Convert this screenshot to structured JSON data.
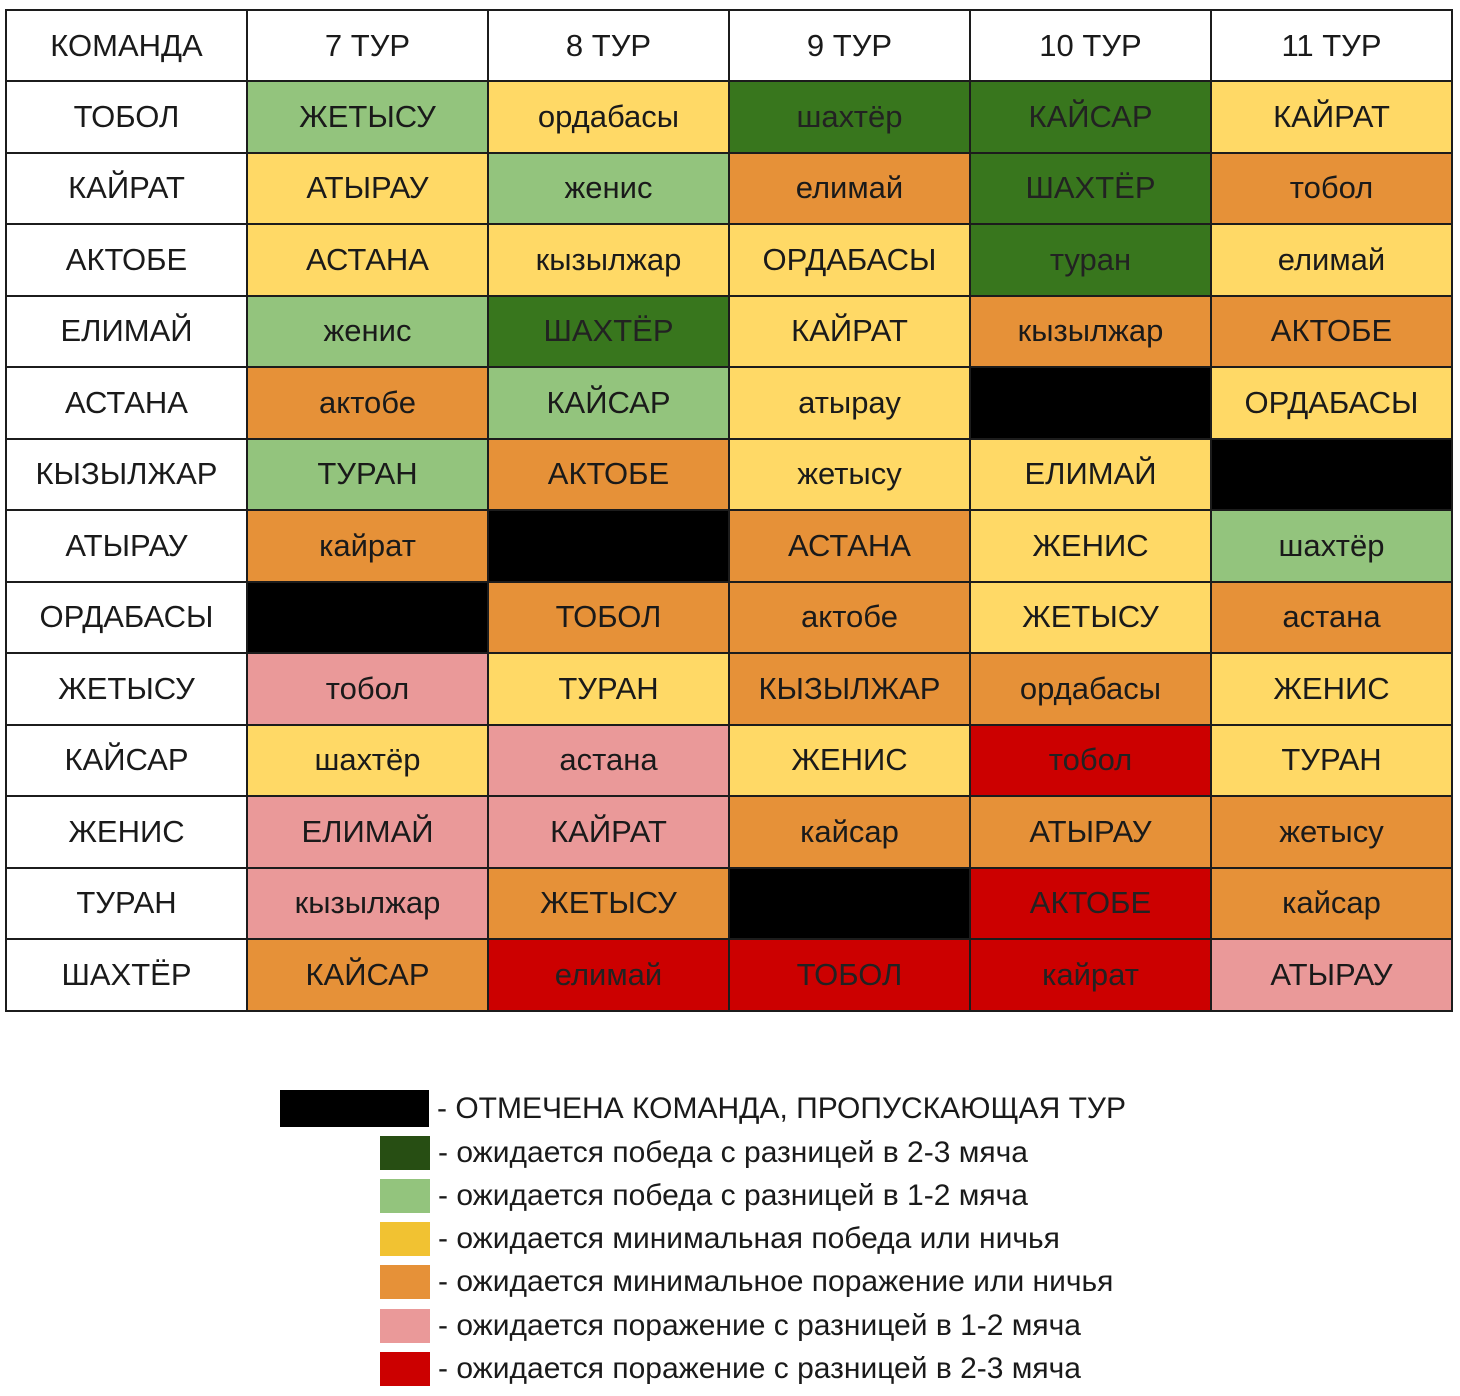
{
  "colors": {
    "bye": "#000000",
    "win_big": "#38761d",
    "win_small": "#93c47d",
    "min_win_draw": "#ffd966",
    "min_loss_draw": "#e69138",
    "loss_small": "#ea9999",
    "loss_big": "#cc0000",
    "legend_win_big": "#274e13",
    "legend_min_win_draw": "#f1c232"
  },
  "header": [
    "КОМАНДА",
    "7 ТУР",
    "8 ТУР",
    "9 ТУР",
    "10 ТУР",
    "11 ТУР"
  ],
  "rows": [
    {
      "team": "ТОБОЛ",
      "cells": [
        {
          "text": "ЖЕТЫСУ",
          "color": "win_small"
        },
        {
          "text": "ордабасы",
          "color": "min_win_draw"
        },
        {
          "text": "шахтёр",
          "color": "win_big"
        },
        {
          "text": "КАЙСАР",
          "color": "win_big"
        },
        {
          "text": "КАЙРАТ",
          "color": "min_win_draw"
        }
      ]
    },
    {
      "team": "КАЙРАТ",
      "cells": [
        {
          "text": "АТЫРАУ",
          "color": "min_win_draw"
        },
        {
          "text": "женис",
          "color": "win_small"
        },
        {
          "text": "елимай",
          "color": "min_loss_draw"
        },
        {
          "text": "ШАХТЁР",
          "color": "win_big"
        },
        {
          "text": "тобол",
          "color": "min_loss_draw"
        }
      ]
    },
    {
      "team": "АКТОБЕ",
      "cells": [
        {
          "text": "АСТАНА",
          "color": "min_win_draw"
        },
        {
          "text": "кызылжар",
          "color": "min_win_draw"
        },
        {
          "text": "ОРДАБАСЫ",
          "color": "min_win_draw"
        },
        {
          "text": "туран",
          "color": "win_big"
        },
        {
          "text": "елимай",
          "color": "min_win_draw"
        }
      ]
    },
    {
      "team": "ЕЛИМАЙ",
      "cells": [
        {
          "text": "женис",
          "color": "win_small"
        },
        {
          "text": "ШАХТЁР",
          "color": "win_big"
        },
        {
          "text": "КАЙРАТ",
          "color": "min_win_draw"
        },
        {
          "text": "кызылжар",
          "color": "min_loss_draw"
        },
        {
          "text": "АКТОБЕ",
          "color": "min_loss_draw"
        }
      ]
    },
    {
      "team": "АСТАНА",
      "cells": [
        {
          "text": "актобе",
          "color": "min_loss_draw"
        },
        {
          "text": "КАЙСАР",
          "color": "win_small"
        },
        {
          "text": "атырау",
          "color": "min_win_draw"
        },
        {
          "text": "",
          "color": "bye"
        },
        {
          "text": "ОРДАБАСЫ",
          "color": "min_win_draw"
        }
      ]
    },
    {
      "team": "КЫЗЫЛЖАР",
      "cells": [
        {
          "text": "ТУРАН",
          "color": "win_small"
        },
        {
          "text": "АКТОБЕ",
          "color": "min_loss_draw"
        },
        {
          "text": "жетысу",
          "color": "min_win_draw"
        },
        {
          "text": "ЕЛИМАЙ",
          "color": "min_win_draw"
        },
        {
          "text": "",
          "color": "bye"
        }
      ]
    },
    {
      "team": "АТЫРАУ",
      "cells": [
        {
          "text": "кайрат",
          "color": "min_loss_draw"
        },
        {
          "text": "",
          "color": "bye"
        },
        {
          "text": "АСТАНА",
          "color": "min_loss_draw"
        },
        {
          "text": "ЖЕНИС",
          "color": "min_win_draw"
        },
        {
          "text": "шахтёр",
          "color": "win_small"
        }
      ]
    },
    {
      "team": "ОРДАБАСЫ",
      "cells": [
        {
          "text": "",
          "color": "bye"
        },
        {
          "text": "ТОБОЛ",
          "color": "min_loss_draw"
        },
        {
          "text": "актобе",
          "color": "min_loss_draw"
        },
        {
          "text": "ЖЕТЫСУ",
          "color": "min_win_draw"
        },
        {
          "text": "астана",
          "color": "min_loss_draw"
        }
      ]
    },
    {
      "team": "ЖЕТЫСУ",
      "cells": [
        {
          "text": "тобол",
          "color": "loss_small"
        },
        {
          "text": "ТУРАН",
          "color": "min_win_draw"
        },
        {
          "text": "КЫЗЫЛЖАР",
          "color": "min_loss_draw"
        },
        {
          "text": "ордабасы",
          "color": "min_loss_draw"
        },
        {
          "text": "ЖЕНИС",
          "color": "min_win_draw"
        }
      ]
    },
    {
      "team": "КАЙСАР",
      "cells": [
        {
          "text": "шахтёр",
          "color": "min_win_draw"
        },
        {
          "text": "астана",
          "color": "loss_small"
        },
        {
          "text": "ЖЕНИС",
          "color": "min_win_draw"
        },
        {
          "text": "тобол",
          "color": "loss_big"
        },
        {
          "text": "ТУРАН",
          "color": "min_win_draw"
        }
      ]
    },
    {
      "team": "ЖЕНИС",
      "cells": [
        {
          "text": "ЕЛИМАЙ",
          "color": "loss_small"
        },
        {
          "text": "КАЙРАТ",
          "color": "loss_small"
        },
        {
          "text": "кайсар",
          "color": "min_loss_draw"
        },
        {
          "text": "АТЫРАУ",
          "color": "min_loss_draw"
        },
        {
          "text": "жетысу",
          "color": "min_loss_draw"
        }
      ]
    },
    {
      "team": "ТУРАН",
      "cells": [
        {
          "text": "кызылжар",
          "color": "loss_small"
        },
        {
          "text": "ЖЕТЫСУ",
          "color": "min_loss_draw"
        },
        {
          "text": "",
          "color": "bye"
        },
        {
          "text": "АКТОБЕ",
          "color": "loss_big"
        },
        {
          "text": "кайсар",
          "color": "min_loss_draw"
        }
      ]
    },
    {
      "team": "ШАХТЁР",
      "cells": [
        {
          "text": "КАЙСАР",
          "color": "min_loss_draw"
        },
        {
          "text": "елимай",
          "color": "loss_big"
        },
        {
          "text": "ТОБОЛ",
          "color": "loss_big"
        },
        {
          "text": "кайрат",
          "color": "loss_big"
        },
        {
          "text": "АТЫРАУ",
          "color": "loss_small"
        }
      ]
    }
  ],
  "legend": [
    {
      "key": "bye",
      "color": "#000000",
      "text": "- ОТМЕЧЕНА КОМАНДА, ПРОПУСКАЮЩАЯ ТУР"
    },
    {
      "key": "win_big",
      "color": "#274e13",
      "text": "- ожидается победа с разницей в 2-3 мяча"
    },
    {
      "key": "win_small",
      "color": "#93c47d",
      "text": "- ожидается победа с разницей в 1-2 мяча"
    },
    {
      "key": "min_win_draw",
      "color": "#f1c232",
      "text": "- ожидается минимальная победа или ничья"
    },
    {
      "key": "min_loss_draw",
      "color": "#e69138",
      "text": "- ожидается минимальное поражение или ничья"
    },
    {
      "key": "loss_small",
      "color": "#ea9999",
      "text": "- ожидается поражение с разницей в 1-2 мяча"
    },
    {
      "key": "loss_big",
      "color": "#cc0000",
      "text": "- ожидается поражение с разницей в 2-3 мяча"
    }
  ]
}
